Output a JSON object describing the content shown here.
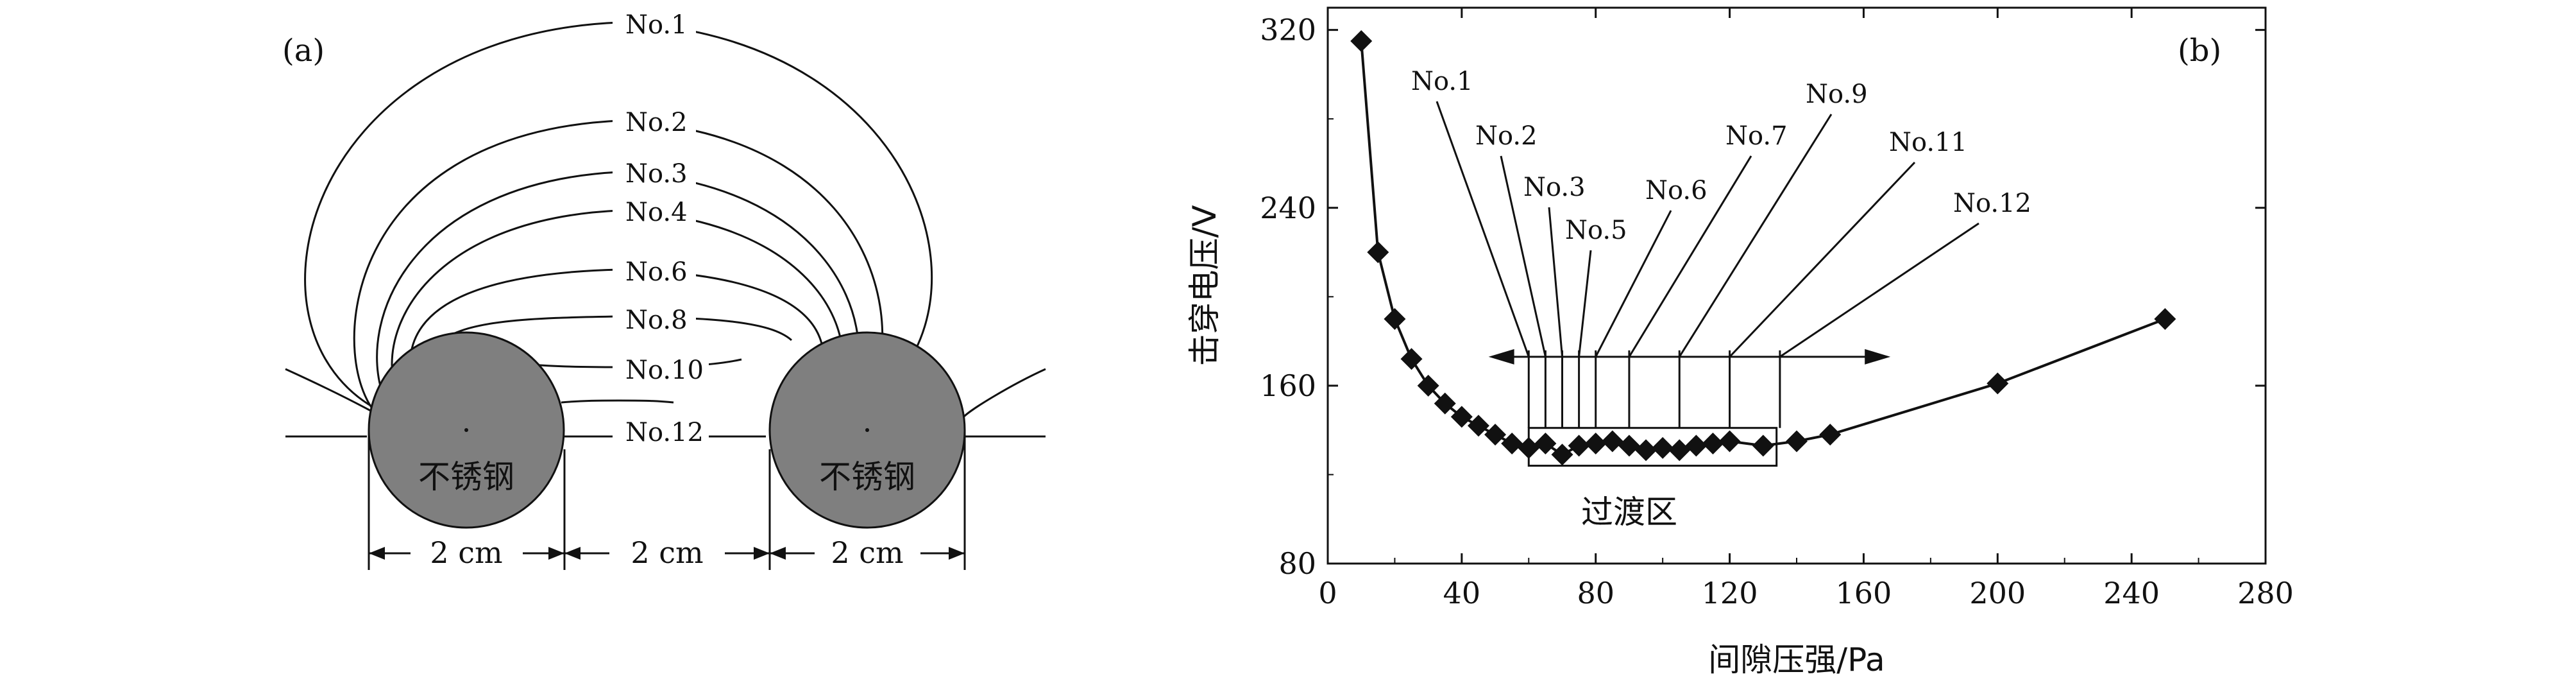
{
  "panel_a": {
    "label": "(a)",
    "curve_labels": [
      "No.1",
      "No.2",
      "No.3",
      "No.4",
      "No.6",
      "No.8",
      "No.10",
      "No.12"
    ],
    "electrode_label": "不锈钢",
    "dimension_labels": [
      "2 cm",
      "2 cm",
      "2 cm"
    ]
  },
  "chart_data": {
    "type": "scatter",
    "title": "",
    "panel_label": "(b)",
    "xlabel": "间隙压强/Pa",
    "ylabel": "击穿电压/V",
    "xlim": [
      0,
      280
    ],
    "ylim": [
      80,
      330
    ],
    "xticks": [
      0,
      40,
      80,
      120,
      160,
      200,
      240,
      280
    ],
    "yticks": [
      80,
      160,
      240,
      320
    ],
    "grid": false,
    "series": [
      {
        "marker": "diamond",
        "line": true,
        "points": [
          [
            10,
            315
          ],
          [
            15,
            220
          ],
          [
            20,
            190
          ],
          [
            25,
            172
          ],
          [
            30,
            160
          ],
          [
            35,
            152
          ],
          [
            40,
            146
          ],
          [
            45,
            142
          ],
          [
            50,
            138
          ],
          [
            55,
            134
          ],
          [
            60,
            132
          ],
          [
            65,
            134
          ],
          [
            70,
            129
          ],
          [
            75,
            133
          ],
          [
            80,
            134
          ],
          [
            85,
            135
          ],
          [
            90,
            133
          ],
          [
            95,
            131
          ],
          [
            100,
            132
          ],
          [
            105,
            131
          ],
          [
            110,
            133
          ],
          [
            115,
            134
          ],
          [
            120,
            135
          ],
          [
            130,
            133
          ],
          [
            140,
            135
          ],
          [
            150,
            138
          ],
          [
            200,
            161
          ],
          [
            250,
            190
          ]
        ]
      }
    ],
    "arrow_range": [
      48,
      168
    ],
    "arrow_y": 173,
    "annotations": [
      {
        "label": "No.1",
        "x": 60,
        "y": 132
      },
      {
        "label": "No.2",
        "x": 65,
        "y": 134
      },
      {
        "label": "No.3",
        "x": 70,
        "y": 129
      },
      {
        "label": "No.5",
        "x": 75,
        "y": 133
      },
      {
        "label": "No.6",
        "x": 80,
        "y": 134
      },
      {
        "label": "No.7",
        "x": 90,
        "y": 133
      },
      {
        "label": "No.9",
        "x": 105,
        "y": 131
      },
      {
        "label": "No.11",
        "x": 120,
        "y": 135
      },
      {
        "label": "No.12",
        "x": 135,
        "y": 133
      }
    ],
    "transition_region": {
      "label": "过渡区",
      "x": [
        60,
        134
      ],
      "y": [
        124,
        141
      ]
    }
  },
  "colors": {
    "electrode_fill": "#7f7f7f",
    "line": "#111111"
  }
}
